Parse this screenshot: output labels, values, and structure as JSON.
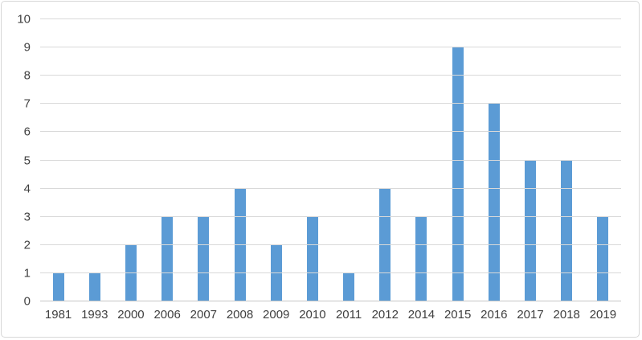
{
  "chart_data": {
    "type": "bar",
    "title": "",
    "xlabel": "",
    "ylabel": "",
    "categories": [
      "1981",
      "1993",
      "2000",
      "2006",
      "2007",
      "2008",
      "2009",
      "2010",
      "2011",
      "2012",
      "2014",
      "2015",
      "2016",
      "2017",
      "2018",
      "2019"
    ],
    "values": [
      1,
      1,
      2,
      3,
      3,
      4,
      2,
      3,
      1,
      4,
      3,
      9,
      7,
      5,
      5,
      3
    ],
    "ylim": [
      0,
      10
    ],
    "ytick_interval": 1,
    "grid": "horizontal",
    "legend": "none"
  },
  "colors": {
    "bar": "#5b9bd5",
    "gridline": "#d9d9d9",
    "axis_line": "#c6c6c6",
    "tick_text": "#404040",
    "frame_border": "#d7d7d7",
    "background": "#ffffff"
  }
}
